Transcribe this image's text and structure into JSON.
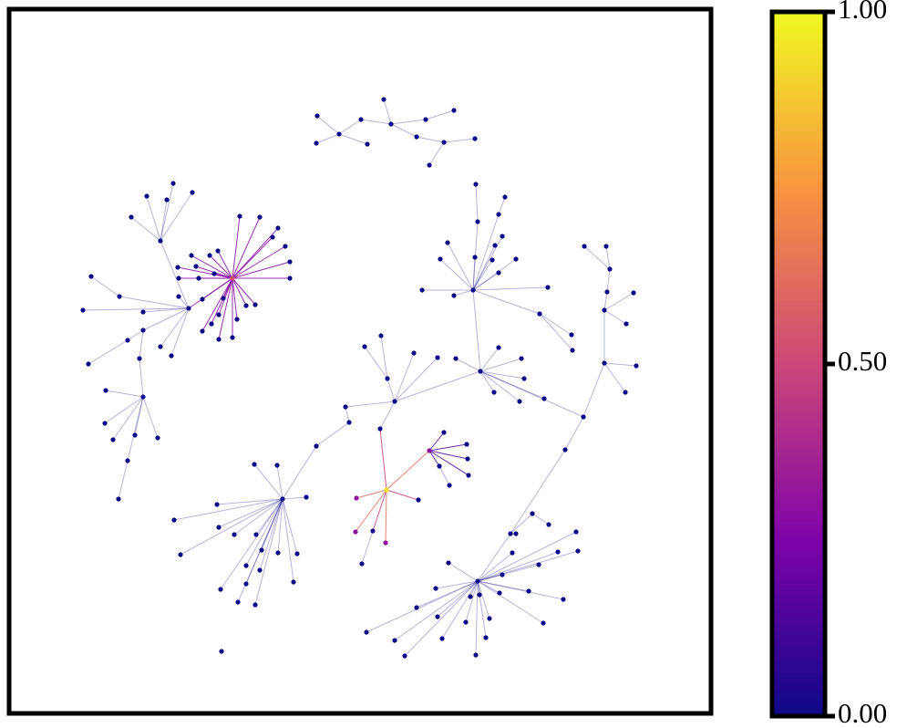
{
  "chart_data": {
    "type": "network",
    "colormap": "plasma",
    "ylim": [
      0,
      1
    ],
    "yticks": [
      {
        "value": 0,
        "label": "0.00"
      },
      {
        "value": 0.5,
        "label": "0.50"
      },
      {
        "value": 1,
        "label": "1.00"
      }
    ],
    "series": [
      {
        "values": [
          0,
          0,
          0,
          0,
          0,
          0,
          0,
          0,
          0,
          0,
          0,
          0,
          0
        ]
      },
      {
        "values": [
          0.55,
          0,
          0,
          0,
          0,
          0,
          0,
          0,
          0,
          0,
          0,
          0,
          0,
          0,
          0,
          0,
          0,
          0,
          0,
          0,
          0,
          0,
          0,
          0,
          0,
          0
        ]
      },
      {
        "values": [
          0,
          0,
          0,
          0,
          0,
          0,
          0,
          0,
          0,
          0,
          0,
          0,
          0,
          0,
          0,
          0,
          0,
          0,
          0,
          0,
          0,
          0,
          0,
          0,
          0,
          0
        ]
      },
      {
        "values": [
          0,
          0,
          0,
          0,
          0,
          0,
          0,
          0,
          0,
          0
        ]
      },
      {
        "values": [
          0.95,
          0.3,
          0.3,
          0,
          0.3,
          0,
          0,
          0.3,
          0,
          0,
          0,
          0,
          0,
          0
        ]
      },
      {
        "values": [
          0,
          0,
          0,
          0,
          0,
          0,
          0,
          0,
          0,
          0,
          0,
          0,
          0,
          0,
          0,
          0,
          0,
          0,
          0,
          0
        ]
      },
      {
        "values": [
          0,
          0,
          0,
          0,
          0,
          0,
          0,
          0,
          0,
          0
        ]
      },
      {
        "values": [
          0,
          0,
          0,
          0,
          0,
          0,
          0,
          0,
          0,
          0
        ]
      },
      {
        "values": [
          0,
          0,
          0,
          0,
          0,
          0,
          0,
          0,
          0,
          0,
          0,
          0,
          0,
          0,
          0,
          0,
          0,
          0,
          0
        ]
      },
      {
        "values": [
          0,
          0,
          0,
          0,
          0,
          0,
          0,
          0,
          0,
          0,
          0,
          0,
          0,
          0,
          0,
          0,
          0,
          0,
          0,
          0,
          0,
          0,
          0,
          0,
          0,
          0,
          0,
          0,
          0
        ]
      },
      {
        "values": [
          0
        ]
      }
    ]
  }
}
